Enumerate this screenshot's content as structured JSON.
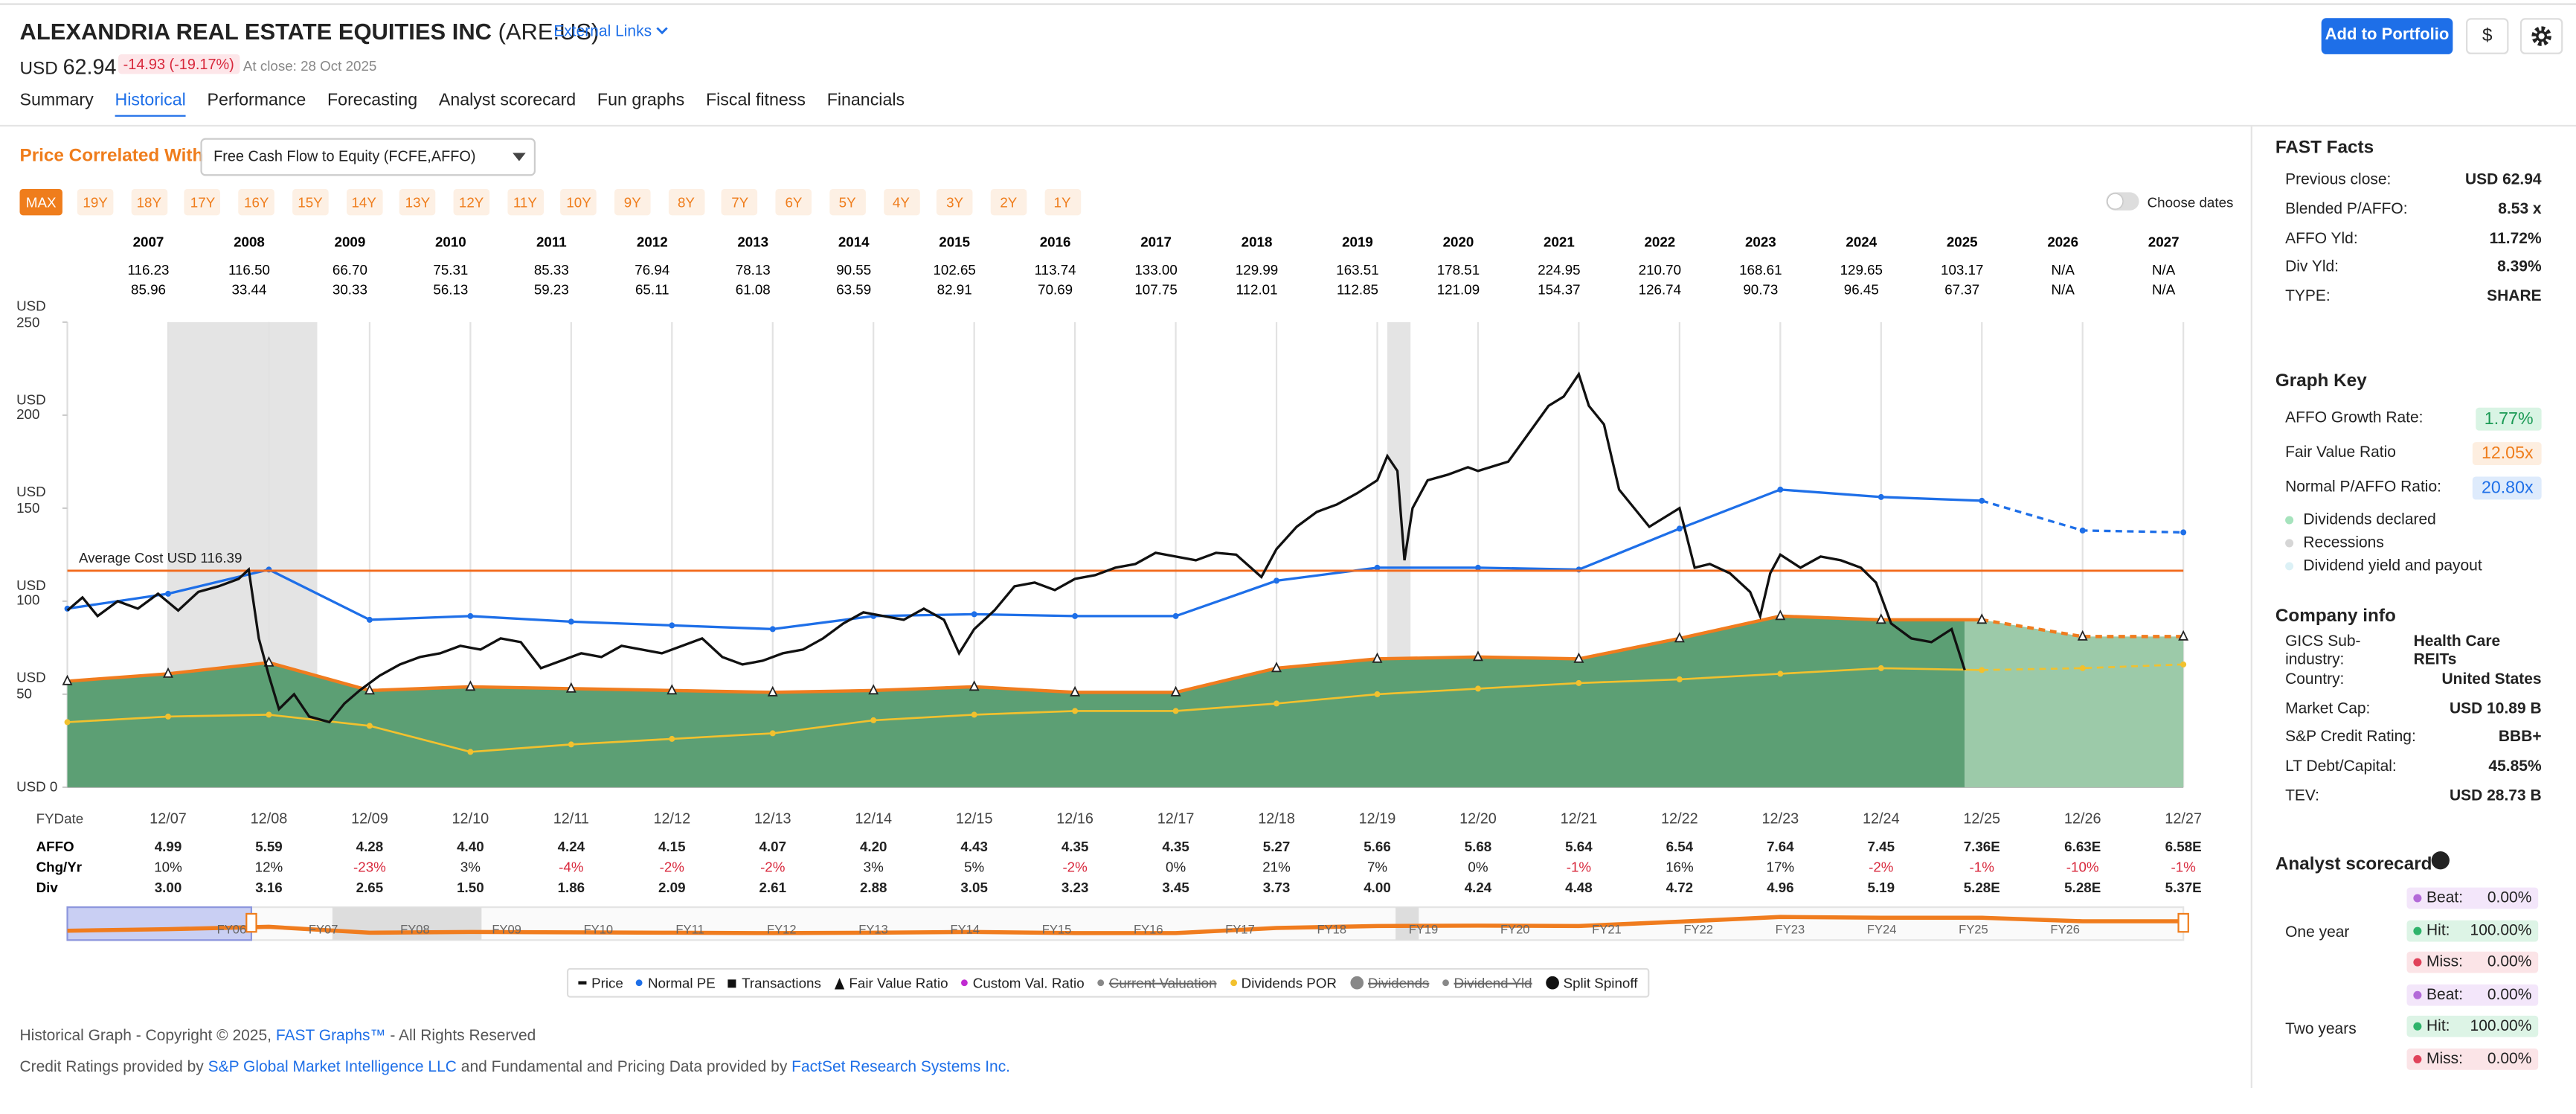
{
  "header": {
    "company": "ALEXANDRIA REAL ESTATE EQUITIES INC",
    "ticker": "(ARE:US)",
    "external_links": "External Links",
    "currency": "USD",
    "price": "62.94",
    "change": "-14.93 (-19.17%)",
    "close_note": "At close: 28 Oct 2025",
    "add_button": "Add to Portfolio",
    "currency_button": "$"
  },
  "tabs": [
    {
      "label": "Summary"
    },
    {
      "label": "Historical",
      "active": true
    },
    {
      "label": "Performance"
    },
    {
      "label": "Forecasting"
    },
    {
      "label": "Analyst scorecard"
    },
    {
      "label": "Fun graphs"
    },
    {
      "label": "Fiscal fitness"
    },
    {
      "label": "Financials"
    }
  ],
  "controls": {
    "correlated_label": "Price Correlated With",
    "correlated_select": "Free Cash Flow to Equity (FCFE,AFFO)",
    "ranges": [
      {
        "label": "MAX",
        "active": true
      },
      {
        "label": "19Y"
      },
      {
        "label": "18Y"
      },
      {
        "label": "17Y"
      },
      {
        "label": "16Y"
      },
      {
        "label": "15Y"
      },
      {
        "label": "14Y"
      },
      {
        "label": "13Y"
      },
      {
        "label": "12Y"
      },
      {
        "label": "11Y"
      },
      {
        "label": "10Y"
      },
      {
        "label": "9Y"
      },
      {
        "label": "8Y"
      },
      {
        "label": "7Y"
      },
      {
        "label": "6Y"
      },
      {
        "label": "5Y"
      },
      {
        "label": "4Y"
      },
      {
        "label": "3Y"
      },
      {
        "label": "2Y"
      },
      {
        "label": "1Y"
      }
    ],
    "choose_dates": "Choose dates"
  },
  "annual_table": {
    "years": [
      "2007",
      "2008",
      "2009",
      "2010",
      "2011",
      "2012",
      "2013",
      "2014",
      "2015",
      "2016",
      "2017",
      "2018",
      "2019",
      "2020",
      "2021",
      "2022",
      "2023",
      "2024",
      "2025",
      "2026",
      "2027"
    ],
    "rows": [
      [
        "116.23",
        "116.50",
        "66.70",
        "75.31",
        "85.33",
        "76.94",
        "78.13",
        "90.55",
        "102.65",
        "113.74",
        "133.00",
        "129.99",
        "163.51",
        "178.51",
        "224.95",
        "210.70",
        "168.61",
        "129.65",
        "103.17",
        "N/A",
        "N/A"
      ],
      [
        "85.96",
        "33.44",
        "30.33",
        "56.13",
        "59.23",
        "65.11",
        "61.08",
        "63.59",
        "82.91",
        "70.69",
        "107.75",
        "112.01",
        "112.85",
        "121.09",
        "154.37",
        "126.74",
        "90.73",
        "96.45",
        "67.37",
        "N/A",
        "N/A"
      ]
    ]
  },
  "chart_data": {
    "type": "line",
    "xlim": [
      2007,
      2028
    ],
    "xticks": [
      {
        "value": 2008,
        "label": "12/07"
      },
      {
        "value": 2009,
        "label": "12/08"
      },
      {
        "value": 2010,
        "label": "12/09"
      },
      {
        "value": 2011,
        "label": "12/10"
      },
      {
        "value": 2012,
        "label": "12/11"
      },
      {
        "value": 2013,
        "label": "12/12"
      },
      {
        "value": 2014,
        "label": "12/13"
      },
      {
        "value": 2015,
        "label": "12/14"
      },
      {
        "value": 2016,
        "label": "12/15"
      },
      {
        "value": 2017,
        "label": "12/16"
      },
      {
        "value": 2018,
        "label": "12/17"
      },
      {
        "value": 2019,
        "label": "12/18"
      },
      {
        "value": 2020,
        "label": "12/19"
      },
      {
        "value": 2021,
        "label": "12/20"
      },
      {
        "value": 2022,
        "label": "12/21"
      },
      {
        "value": 2023,
        "label": "12/22"
      },
      {
        "value": 2024,
        "label": "12/23"
      },
      {
        "value": 2025,
        "label": "12/24"
      },
      {
        "value": 2026,
        "label": "12/25"
      },
      {
        "value": 2027,
        "label": "12/26"
      },
      {
        "value": 2028,
        "label": "12/27"
      }
    ],
    "ylim": [
      0,
      250
    ],
    "yticks": [
      {
        "value": 0,
        "label": "USD 0"
      },
      {
        "value": 50,
        "label": "USD 50"
      },
      {
        "value": 100,
        "label": "USD 100"
      },
      {
        "value": 150,
        "label": "USD 150"
      },
      {
        "value": 200,
        "label": "USD 200"
      },
      {
        "value": 250,
        "label": "USD 250"
      }
    ],
    "grid": true,
    "recessions": [
      {
        "start": 2008.0,
        "end": 2009.48
      },
      {
        "start": 2020.1,
        "end": 2020.33
      }
    ],
    "average_cost": {
      "label": "Average Cost USD 116.39",
      "value": 116.39,
      "color": "#f26b1d"
    },
    "fair_value": {
      "color": "#f07c1e",
      "fill": "#5c9f74",
      "fill_estimate": "#9ccaa9",
      "x": [
        2007,
        2008,
        2009,
        2010,
        2011,
        2012,
        2013,
        2014,
        2015,
        2016,
        2017,
        2018,
        2019,
        2020,
        2021,
        2022,
        2023,
        2024,
        2025,
        2026,
        2027,
        2028
      ],
      "values": [
        57,
        61,
        67,
        52,
        54,
        53,
        52,
        51,
        52,
        54,
        51,
        51,
        64,
        69,
        70,
        69,
        80,
        92,
        90,
        90,
        81,
        81
      ]
    },
    "dividends": {
      "color": "#f2c12e",
      "x": [
        2007,
        2008,
        2009,
        2010,
        2011,
        2012,
        2013,
        2014,
        2015,
        2016,
        2017,
        2018,
        2019,
        2020,
        2021,
        2022,
        2023,
        2024,
        2025,
        2026,
        2027,
        2028
      ],
      "values": [
        35,
        38,
        39,
        33,
        19,
        23,
        26,
        29,
        36,
        39,
        41,
        41,
        45,
        50,
        53,
        56,
        58,
        61,
        64,
        63,
        64,
        66
      ]
    },
    "normal_pe": {
      "color": "#1e6fe8",
      "x": [
        2007,
        2008,
        2009,
        2010,
        2011,
        2012,
        2013,
        2014,
        2015,
        2016,
        2017,
        2018,
        2019,
        2020,
        2021,
        2022,
        2023,
        2024,
        2025,
        2026,
        2027,
        2028
      ],
      "values": [
        96,
        104,
        117,
        90,
        92,
        89,
        87,
        85,
        92,
        93,
        92,
        92,
        111,
        118,
        118,
        117,
        139,
        160,
        156,
        154,
        138,
        137
      ]
    },
    "price": {
      "color": "#111111",
      "x": [
        2007.0,
        2007.15,
        2007.3,
        2007.5,
        2007.7,
        2007.9,
        2008.1,
        2008.3,
        2008.5,
        2008.7,
        2008.8,
        2008.9,
        2009.0,
        2009.1,
        2009.25,
        2009.4,
        2009.6,
        2009.75,
        2009.9,
        2010.1,
        2010.3,
        2010.5,
        2010.7,
        2010.9,
        2011.1,
        2011.3,
        2011.5,
        2011.7,
        2011.9,
        2012.1,
        2012.3,
        2012.5,
        2012.7,
        2012.9,
        2013.1,
        2013.3,
        2013.5,
        2013.7,
        2013.9,
        2014.1,
        2014.3,
        2014.5,
        2014.7,
        2014.9,
        2015.1,
        2015.3,
        2015.5,
        2015.7,
        2015.85,
        2016.0,
        2016.2,
        2016.4,
        2016.6,
        2016.8,
        2017.0,
        2017.2,
        2017.4,
        2017.6,
        2017.8,
        2018.0,
        2018.2,
        2018.4,
        2018.6,
        2018.85,
        2019.0,
        2019.2,
        2019.4,
        2019.6,
        2019.8,
        2020.0,
        2020.1,
        2020.2,
        2020.27,
        2020.35,
        2020.5,
        2020.7,
        2020.9,
        2021.0,
        2021.3,
        2021.5,
        2021.7,
        2021.85,
        2022.0,
        2022.1,
        2022.25,
        2022.4,
        2022.55,
        2022.7,
        2022.85,
        2023.0,
        2023.15,
        2023.3,
        2023.5,
        2023.7,
        2023.8,
        2023.9,
        2024.0,
        2024.2,
        2024.4,
        2024.6,
        2024.8,
        2024.95,
        2025.1,
        2025.3,
        2025.5,
        2025.7,
        2025.83
      ],
      "values": [
        95,
        102,
        92,
        100,
        96,
        104,
        95,
        105,
        108,
        112,
        117,
        80,
        60,
        42,
        50,
        38,
        35,
        45,
        52,
        60,
        66,
        70,
        72,
        76,
        74,
        80,
        78,
        64,
        68,
        72,
        70,
        76,
        74,
        72,
        76,
        80,
        70,
        66,
        68,
        72,
        74,
        80,
        88,
        94,
        92,
        90,
        96,
        90,
        72,
        85,
        95,
        108,
        110,
        106,
        112,
        114,
        118,
        120,
        126,
        124,
        122,
        126,
        125,
        113,
        128,
        140,
        148,
        152,
        158,
        165,
        178,
        170,
        122,
        150,
        165,
        168,
        172,
        170,
        175,
        190,
        205,
        210,
        222,
        205,
        195,
        160,
        150,
        140,
        145,
        150,
        118,
        120,
        115,
        105,
        92,
        115,
        125,
        118,
        124,
        122,
        118,
        110,
        88,
        80,
        78,
        85,
        63
      ]
    }
  },
  "fiscal_table": {
    "date_label": "FYDate",
    "rows": [
      {
        "label": "AFFO",
        "cells": [
          "4.99",
          "5.59",
          "4.28",
          "4.40",
          "4.24",
          "4.15",
          "4.07",
          "4.20",
          "4.43",
          "4.35",
          "4.35",
          "5.27",
          "5.66",
          "5.68",
          "5.64",
          "6.54",
          "7.64",
          "7.45",
          "7.36E",
          "6.63E",
          "6.58E"
        ]
      },
      {
        "label": "Chg/Yr",
        "cells": [
          "10%",
          "12%",
          "-23%",
          "3%",
          "-4%",
          "-2%",
          "-2%",
          "3%",
          "5%",
          "-2%",
          "0%",
          "21%",
          "7%",
          "0%",
          "-1%",
          "16%",
          "17%",
          "-2%",
          "-1%",
          "-10%",
          "-1%"
        ]
      },
      {
        "label": "Div",
        "cells": [
          "3.00",
          "3.16",
          "2.65",
          "1.50",
          "1.86",
          "2.09",
          "2.61",
          "2.88",
          "3.05",
          "3.23",
          "3.45",
          "3.73",
          "4.00",
          "4.24",
          "4.48",
          "4.72",
          "4.96",
          "5.19",
          "5.28E",
          "5.28E",
          "5.37E"
        ]
      }
    ]
  },
  "navigator": {
    "labels": [
      "FY06",
      "FY07",
      "FY08",
      "FY09",
      "FY10",
      "FY11",
      "FY12",
      "FY13",
      "FY14",
      "FY15",
      "FY16",
      "FY17",
      "FY18",
      "FY19",
      "FY20",
      "FY21",
      "FY22",
      "FY23",
      "FY24",
      "FY25",
      "FY26"
    ]
  },
  "legend": [
    {
      "label": "Price",
      "symbol": "dash",
      "color": "#111111"
    },
    {
      "label": "Normal PE",
      "symbol": "dot",
      "color": "#1e6fe8"
    },
    {
      "label": "Transactions",
      "symbol": "square",
      "color": "#111111"
    },
    {
      "label": "Fair Value Ratio",
      "symbol": "triangle",
      "color": "#111111"
    },
    {
      "label": "Custom Val. Ratio",
      "symbol": "dot",
      "color": "#c02bd1"
    },
    {
      "label": "Current Valuation",
      "symbol": "dot",
      "color": "#888888",
      "struck": true
    },
    {
      "label": "Dividends POR",
      "symbol": "dot",
      "color": "#f2c12e"
    },
    {
      "label": "Dividends",
      "symbol": "circle",
      "color": "#888888",
      "struck": true
    },
    {
      "label": "Dividend Yld",
      "symbol": "dot",
      "color": "#888888",
      "struck": true
    },
    {
      "label": "Split Spinoff",
      "symbol": "circle",
      "color": "#111111"
    }
  ],
  "footer": {
    "copyright": {
      "before": "Historical Graph - Copyright © 2025, ",
      "link": "FAST Graphs™",
      "after": " - All Rights Reserved"
    },
    "credits": {
      "before": "Credit Ratings provided by ",
      "link1": "S&P Global Market Intelligence LLC",
      "middle": " and Fundamental and Pricing Data provided by ",
      "link2": "FactSet Research Systems Inc."
    }
  },
  "sidebar": {
    "fast_facts": {
      "title": "FAST Facts",
      "rows": [
        {
          "label": "Previous close:",
          "value": "USD 62.94"
        },
        {
          "label": "Blended P/AFFO:",
          "value": "8.53 x"
        },
        {
          "label": "AFFO Yld:",
          "value": "11.72%"
        },
        {
          "label": "Div Yld:",
          "value": "8.39%"
        },
        {
          "label": "TYPE:",
          "value": "SHARE"
        }
      ]
    },
    "graph_key": {
      "title": "Graph Key",
      "rates": [
        {
          "label": "AFFO Growth Rate:",
          "value": "1.77%",
          "color": "#1b9a55",
          "background": "#d9f4e4"
        },
        {
          "label": "Fair Value Ratio",
          "value": "12.05x",
          "color": "#ef7d1c",
          "background": "#fdeee0"
        },
        {
          "label": "Normal P/AFFO Ratio:",
          "value": "20.80x",
          "color": "#1e6fe8",
          "background": "#deebfc"
        }
      ],
      "items": [
        {
          "label": "Dividends declared",
          "color": "#a6e3bd"
        },
        {
          "label": "Recessions",
          "color": "#d6d6d6"
        },
        {
          "label": "Dividend yield and payout",
          "color": "#dcf1f6"
        }
      ]
    },
    "company_info": {
      "title": "Company info",
      "rows": [
        {
          "label": "GICS Sub-industry:",
          "value": "Health Care REITs"
        },
        {
          "label": "Country:",
          "value": "United States"
        },
        {
          "label": "Market Cap:",
          "value": "USD 10.89 B"
        },
        {
          "label": "S&P Credit Rating:",
          "value": "BBB+"
        },
        {
          "label": "LT Debt/Capital:",
          "value": "45.85%"
        },
        {
          "label": "TEV:",
          "value": "USD 28.73 B"
        }
      ]
    },
    "scorecard": {
      "title": "Analyst scorecard",
      "periods": [
        {
          "label": "One year",
          "rows": [
            {
              "label": "Beat:",
              "value": "0.00%",
              "color": "#b36ad8",
              "background": "#f3e6fa"
            },
            {
              "label": "Hit:",
              "value": "100.00%",
              "color": "#2fb36b",
              "background": "#ddf4e6"
            },
            {
              "label": "Miss:",
              "value": "0.00%",
              "color": "#e0425a",
              "background": "#fbe4e7"
            }
          ]
        },
        {
          "label": "Two years",
          "rows": [
            {
              "label": "Beat:",
              "value": "0.00%",
              "color": "#b36ad8",
              "background": "#f3e6fa"
            },
            {
              "label": "Hit:",
              "value": "100.00%",
              "color": "#2fb36b",
              "background": "#ddf4e6"
            },
            {
              "label": "Miss:",
              "value": "0.00%",
              "color": "#e0425a",
              "background": "#fbe4e7"
            }
          ]
        }
      ]
    }
  }
}
